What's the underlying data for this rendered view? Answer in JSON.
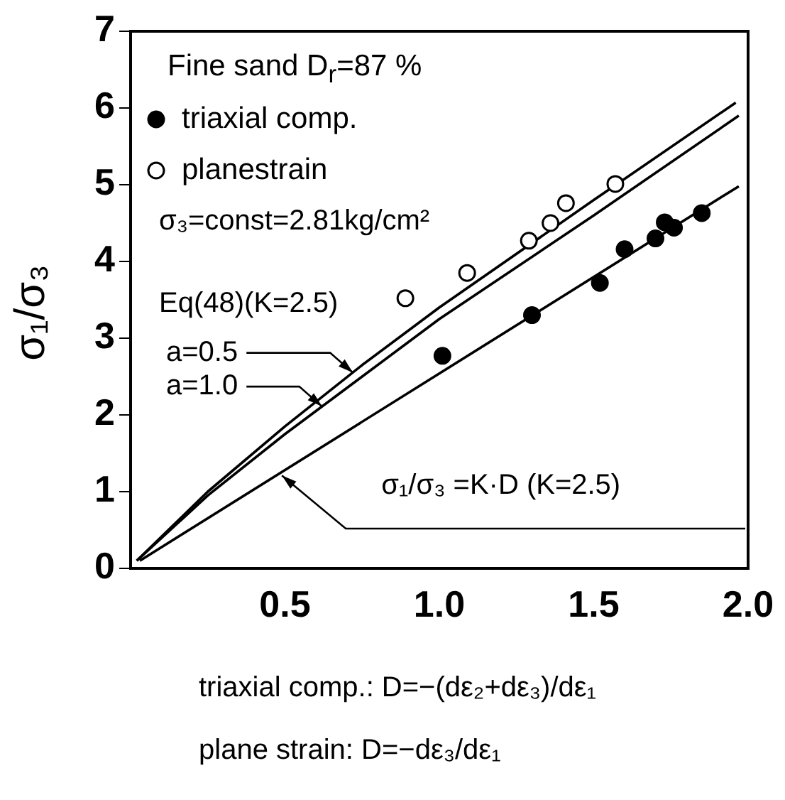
{
  "chart_data": {
    "type": "scatter",
    "title": "Fine sand  D$_{r}$=87 %",
    "xlabel": "triaxial comp.: D=−(dε₂+dε₃)/dε₁\nplane strain: D=−dε₃/dε₁",
    "ylabel": "σ₁/σ₃",
    "xlim": [
      0,
      2
    ],
    "ylim": [
      0,
      7
    ],
    "xticks": [
      0.5,
      {
        "value": 1,
        "label": "1.0"
      },
      1.5,
      {
        "value": 2,
        "label": "2.0"
      }
    ],
    "yticks": [
      0,
      1,
      2,
      3,
      4,
      5,
      6,
      7
    ],
    "grid": false,
    "legend": "top left",
    "series": [
      {
        "name": "triaxial comp.",
        "marker": "circle",
        "color": "#000000",
        "x": [
          1.01,
          1.3,
          1.52,
          1.6,
          1.7,
          1.73,
          1.76,
          1.85
        ],
        "values": [
          2.77,
          3.3,
          3.72,
          4.16,
          4.3,
          4.51,
          4.44,
          4.63
        ]
      },
      {
        "name": "planestrain",
        "marker": "circle",
        "color": "#ffffff",
        "x": [
          0.89,
          1.09,
          1.29,
          1.36,
          1.41,
          1.57
        ],
        "values": [
          3.52,
          3.85,
          4.27,
          4.5,
          4.76,
          5.01
        ]
      },
      {
        "type": "line",
        "marker": "none",
        "color": "#000000",
        "x": [
          0.02,
          0.25,
          0.5,
          0.75,
          1.0,
          1.5,
          1.96
        ],
        "values": [
          0.1,
          1.0,
          1.85,
          2.65,
          3.4,
          4.8,
          6.07
        ]
      },
      {
        "type": "line",
        "marker": "none",
        "color": "#000000",
        "x": [
          0.02,
          0.25,
          0.5,
          0.75,
          1.0,
          1.5,
          1.97
        ],
        "values": [
          0.1,
          0.95,
          1.75,
          2.5,
          3.25,
          4.6,
          5.9
        ]
      },
      {
        "type": "line",
        "marker": "none",
        "color": "#000000",
        "x": [
          0.03,
          1.97
        ],
        "values": [
          0.1,
          4.98
        ]
      }
    ],
    "annotations": [
      "σ₃=const=2.81kg/cm²",
      "Eq(48)(K=2.5)",
      {
        "text": "a=0.5",
        "x": 0.72,
        "y": 2.55
      },
      {
        "text": "a=1.0",
        "x": 0.62,
        "y": 2.11
      },
      {
        "text": "σ₁/σ₃ =K·D (K=2.5)",
        "x": 0.49,
        "y": 1.21
      }
    ]
  }
}
